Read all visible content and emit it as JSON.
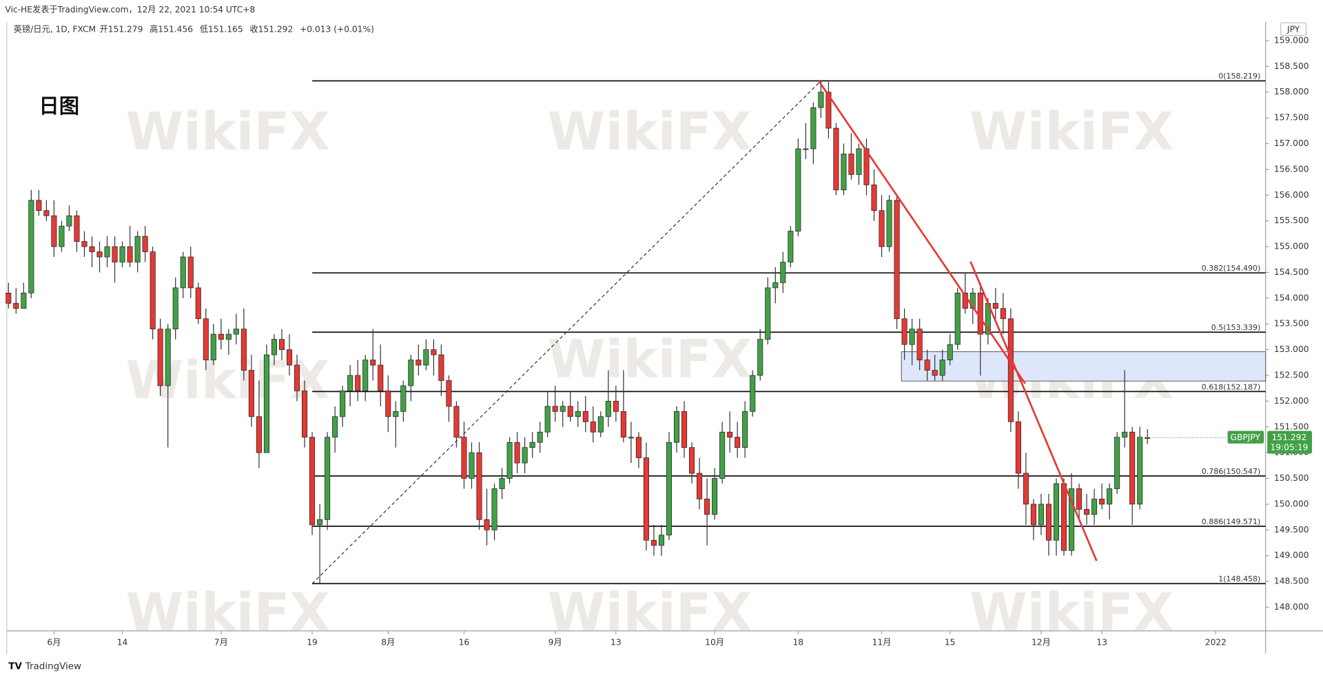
{
  "chart_data": {
    "type": "candlestick",
    "header": "Vic-HE发表于TradingView.com，12月 22, 2021 10:54 UTC+8",
    "symbol_line": "英镑/日元, 1D, FXCM",
    "ohlc_line": [
      "开151.279",
      "高151.456",
      "低151.165",
      "收151.292",
      "+0.013 (+0.01%)"
    ],
    "label": "日图",
    "currency": "JPY",
    "ticker": "GBPJPY",
    "last_price": 151.292,
    "countdown": "19:05:19",
    "footer": "TradingView",
    "watermark": "WikiFX",
    "up_color": "#43a047",
    "down_color": "#e53935",
    "xlim": [
      -0.22,
      165.56
    ],
    "ylim": [
      147.54,
      159.33
    ],
    "xticks": [
      {
        "value": 6,
        "label": "6月"
      },
      {
        "value": 15,
        "label": "14"
      },
      {
        "value": 28,
        "label": "7月"
      },
      {
        "value": 40,
        "label": "19"
      },
      {
        "value": 50,
        "label": "8月"
      },
      {
        "value": 60,
        "label": "16"
      },
      {
        "value": 72,
        "label": "9月"
      },
      {
        "value": 80,
        "label": "13"
      },
      {
        "value": 93,
        "label": "10月"
      },
      {
        "value": 104,
        "label": "18"
      },
      {
        "value": 115,
        "label": "11月"
      },
      {
        "value": 124,
        "label": "15"
      },
      {
        "value": 136,
        "label": "12月"
      },
      {
        "value": 144,
        "label": "13"
      },
      {
        "value": 159,
        "label": "2022"
      }
    ],
    "yticks": [
      {
        "value": 148,
        "label": "148.000"
      },
      {
        "value": 148.5,
        "label": "148.500"
      },
      {
        "value": 149,
        "label": "149.000"
      },
      {
        "value": 149.5,
        "label": "149.500"
      },
      {
        "value": 150,
        "label": "150.000"
      },
      {
        "value": 150.5,
        "label": "150.500"
      },
      {
        "value": 151,
        "label": "151.000"
      },
      {
        "value": 151.5,
        "label": "151.500"
      },
      {
        "value": 152,
        "label": "152.000"
      },
      {
        "value": 152.5,
        "label": "152.500"
      },
      {
        "value": 153,
        "label": "153.000"
      },
      {
        "value": 153.5,
        "label": "153.500"
      },
      {
        "value": 154,
        "label": "154.000"
      },
      {
        "value": 154.5,
        "label": "154.500"
      },
      {
        "value": 155,
        "label": "155.000"
      },
      {
        "value": 155.5,
        "label": "155.500"
      },
      {
        "value": 156,
        "label": "156.000"
      },
      {
        "value": 156.5,
        "label": "156.500"
      },
      {
        "value": 157,
        "label": "157.000"
      },
      {
        "value": 157.5,
        "label": "157.500"
      },
      {
        "value": 158,
        "label": "158.000"
      },
      {
        "value": 158.5,
        "label": "158.500"
      },
      {
        "value": 159,
        "label": "159.000"
      }
    ],
    "fib_start": 40,
    "fib_levels": [
      {
        "value": 158.219,
        "label": "0(158.219)"
      },
      {
        "value": 154.49,
        "label": "0.382(154.490)"
      },
      {
        "value": 153.339,
        "label": "0.5(153.339)"
      },
      {
        "value": 152.187,
        "label": "0.618(152.187)"
      },
      {
        "value": 150.547,
        "label": "0.786(150.547)"
      },
      {
        "value": 149.571,
        "label": "0.886(149.571)"
      },
      {
        "value": 148.458,
        "label": "1(148.458)"
      }
    ],
    "zone": {
      "x": 117.6,
      "low": 152.39,
      "high": 152.96
    },
    "trend_lines": [
      {
        "x": [
          40,
          107
        ],
        "y": [
          148.458,
          158.219
        ],
        "color": "#333333",
        "dashed": true
      },
      {
        "x": [
          106.7,
          133.9
        ],
        "y": [
          158.22,
          152.34
        ],
        "color": "#e53935",
        "dashed": false
      },
      {
        "x": [
          126.7,
          143.3
        ],
        "y": [
          154.71,
          148.9
        ],
        "color": "#e53935",
        "dashed": false
      }
    ],
    "candles": [
      [
        154.1,
        154.3,
        153.8,
        153.9
      ],
      [
        153.9,
        154.2,
        153.7,
        153.8
      ],
      [
        153.8,
        154.3,
        153.8,
        154.1
      ],
      [
        154.1,
        156.1,
        154.0,
        155.9
      ],
      [
        155.9,
        156.1,
        155.6,
        155.7
      ],
      [
        155.7,
        155.9,
        155.5,
        155.6
      ],
      [
        155.6,
        155.9,
        154.8,
        155.0
      ],
      [
        155.0,
        155.5,
        154.9,
        155.4
      ],
      [
        155.4,
        155.8,
        155.3,
        155.6
      ],
      [
        155.6,
        155.7,
        154.9,
        155.1
      ],
      [
        155.1,
        155.3,
        154.8,
        155.0
      ],
      [
        155.0,
        155.2,
        154.6,
        154.9
      ],
      [
        154.9,
        155.1,
        154.5,
        154.8
      ],
      [
        154.8,
        155.2,
        154.6,
        155.0
      ],
      [
        155.0,
        155.2,
        154.3,
        154.7
      ],
      [
        154.7,
        155.1,
        154.6,
        155.0
      ],
      [
        155.0,
        155.4,
        154.6,
        154.7
      ],
      [
        154.7,
        155.3,
        154.5,
        155.2
      ],
      [
        155.2,
        155.4,
        154.7,
        154.9
      ],
      [
        154.9,
        155.0,
        153.2,
        153.4
      ],
      [
        153.4,
        153.6,
        152.1,
        152.3
      ],
      [
        152.3,
        153.5,
        151.1,
        153.4
      ],
      [
        153.4,
        154.4,
        153.2,
        154.2
      ],
      [
        154.2,
        154.9,
        154.0,
        154.8
      ],
      [
        154.8,
        155.0,
        154.0,
        154.2
      ],
      [
        154.2,
        154.3,
        153.5,
        153.6
      ],
      [
        153.6,
        153.8,
        152.6,
        152.8
      ],
      [
        152.8,
        153.5,
        152.7,
        153.3
      ],
      [
        153.3,
        153.6,
        153.0,
        153.2
      ],
      [
        153.2,
        153.4,
        152.9,
        153.3
      ],
      [
        153.3,
        153.7,
        153.1,
        153.4
      ],
      [
        153.4,
        153.8,
        152.4,
        152.6
      ],
      [
        152.6,
        152.9,
        151.5,
        151.7
      ],
      [
        151.7,
        152.4,
        150.7,
        151.0
      ],
      [
        151.0,
        153.1,
        151.0,
        152.9
      ],
      [
        152.9,
        153.3,
        152.7,
        153.2
      ],
      [
        153.2,
        153.4,
        152.8,
        153.0
      ],
      [
        153.0,
        153.3,
        152.5,
        152.7
      ],
      [
        152.7,
        152.9,
        152.0,
        152.2
      ],
      [
        152.2,
        152.4,
        151.1,
        151.3
      ],
      [
        151.3,
        151.4,
        149.4,
        149.6
      ],
      [
        149.6,
        150.0,
        148.46,
        149.7
      ],
      [
        149.7,
        151.4,
        149.5,
        151.3
      ],
      [
        151.3,
        151.9,
        151.0,
        151.7
      ],
      [
        151.7,
        152.3,
        151.5,
        152.2
      ],
      [
        152.2,
        152.7,
        151.9,
        152.5
      ],
      [
        152.5,
        152.8,
        152.0,
        152.2
      ],
      [
        152.2,
        152.9,
        152.0,
        152.8
      ],
      [
        152.8,
        153.4,
        152.4,
        152.7
      ],
      [
        152.7,
        153.1,
        151.9,
        152.2
      ],
      [
        152.2,
        152.5,
        151.4,
        151.7
      ],
      [
        151.7,
        152.0,
        151.1,
        151.8
      ],
      [
        151.8,
        152.4,
        151.6,
        152.3
      ],
      [
        152.3,
        152.9,
        152.0,
        152.8
      ],
      [
        152.8,
        153.1,
        152.5,
        152.7
      ],
      [
        152.7,
        153.2,
        152.6,
        153.0
      ],
      [
        153.0,
        153.2,
        152.5,
        152.9
      ],
      [
        152.9,
        153.1,
        152.1,
        152.4
      ],
      [
        152.4,
        152.5,
        151.6,
        151.9
      ],
      [
        151.9,
        152.0,
        151.1,
        151.3
      ],
      [
        151.3,
        151.6,
        150.3,
        150.5
      ],
      [
        150.5,
        151.2,
        150.3,
        151.0
      ],
      [
        151.0,
        151.2,
        149.5,
        149.7
      ],
      [
        149.7,
        150.3,
        149.2,
        149.5
      ],
      [
        149.5,
        150.4,
        149.3,
        150.3
      ],
      [
        150.3,
        150.7,
        150.1,
        150.5
      ],
      [
        150.5,
        151.3,
        150.4,
        151.2
      ],
      [
        151.2,
        151.4,
        150.6,
        150.8
      ],
      [
        150.8,
        151.3,
        150.6,
        151.1
      ],
      [
        151.1,
        151.4,
        150.9,
        151.2
      ],
      [
        151.2,
        151.6,
        151.0,
        151.4
      ],
      [
        151.4,
        152.2,
        151.3,
        151.9
      ],
      [
        151.9,
        152.3,
        151.6,
        151.8
      ],
      [
        151.8,
        152.0,
        151.5,
        151.9
      ],
      [
        151.9,
        152.2,
        151.6,
        151.7
      ],
      [
        151.7,
        152.0,
        151.5,
        151.8
      ],
      [
        151.8,
        152.1,
        151.4,
        151.6
      ],
      [
        151.6,
        151.9,
        151.2,
        151.4
      ],
      [
        151.4,
        151.8,
        151.3,
        151.7
      ],
      [
        151.7,
        152.6,
        151.5,
        152.0
      ],
      [
        152.0,
        152.3,
        151.6,
        151.8
      ],
      [
        151.8,
        152.6,
        151.2,
        151.3
      ],
      [
        151.3,
        151.6,
        150.8,
        151.3
      ],
      [
        151.3,
        151.4,
        150.7,
        150.9
      ],
      [
        150.9,
        151.2,
        149.1,
        149.3
      ],
      [
        149.3,
        149.6,
        149.0,
        149.2
      ],
      [
        149.2,
        149.6,
        149.0,
        149.4
      ],
      [
        149.4,
        151.4,
        149.3,
        151.2
      ],
      [
        151.2,
        151.9,
        151.0,
        151.8
      ],
      [
        151.8,
        152.0,
        150.9,
        151.1
      ],
      [
        151.1,
        151.2,
        150.4,
        150.6
      ],
      [
        150.6,
        150.9,
        149.9,
        150.1
      ],
      [
        150.1,
        150.5,
        149.2,
        149.8
      ],
      [
        149.8,
        150.7,
        149.7,
        150.5
      ],
      [
        150.5,
        151.6,
        150.4,
        151.4
      ],
      [
        151.4,
        151.8,
        151.0,
        151.3
      ],
      [
        151.3,
        151.6,
        150.9,
        151.1
      ],
      [
        151.1,
        152.0,
        150.9,
        151.8
      ],
      [
        151.8,
        152.6,
        151.7,
        152.5
      ],
      [
        152.5,
        153.4,
        152.4,
        153.2
      ],
      [
        153.2,
        154.4,
        153.1,
        154.2
      ],
      [
        154.2,
        154.6,
        153.9,
        154.3
      ],
      [
        154.3,
        154.9,
        154.1,
        154.7
      ],
      [
        154.7,
        155.4,
        154.6,
        155.3
      ],
      [
        155.3,
        157.1,
        155.2,
        156.9
      ],
      [
        156.9,
        157.4,
        156.7,
        156.9
      ],
      [
        156.9,
        157.8,
        156.6,
        157.7
      ],
      [
        157.7,
        158.219,
        157.5,
        158.0
      ],
      [
        158.0,
        158.2,
        157.1,
        157.3
      ],
      [
        157.3,
        157.4,
        156.0,
        156.1
      ],
      [
        156.1,
        157.0,
        156.0,
        156.8
      ],
      [
        156.8,
        157.2,
        156.3,
        156.4
      ],
      [
        156.4,
        157.0,
        156.2,
        156.9
      ],
      [
        156.9,
        157.1,
        156.0,
        156.2
      ],
      [
        156.2,
        156.5,
        155.5,
        155.7
      ],
      [
        155.7,
        156.0,
        154.8,
        155.0
      ],
      [
        155.0,
        156.0,
        154.9,
        155.9
      ],
      [
        155.9,
        156.0,
        153.4,
        153.6
      ],
      [
        153.6,
        153.8,
        152.8,
        153.1
      ],
      [
        153.1,
        153.6,
        152.7,
        153.4
      ],
      [
        153.4,
        153.6,
        152.6,
        152.8
      ],
      [
        152.8,
        153.0,
        152.4,
        152.6
      ],
      [
        152.6,
        152.9,
        152.4,
        152.5
      ],
      [
        152.5,
        153.0,
        152.4,
        152.8
      ],
      [
        152.8,
        153.3,
        152.7,
        153.1
      ],
      [
        153.1,
        154.2,
        153.0,
        154.1
      ],
      [
        154.1,
        154.5,
        153.7,
        153.8
      ],
      [
        153.8,
        154.2,
        153.5,
        154.1
      ],
      [
        154.1,
        154.3,
        152.5,
        153.3
      ],
      [
        153.3,
        154.0,
        153.1,
        153.9
      ],
      [
        153.9,
        154.2,
        153.6,
        153.8
      ],
      [
        153.8,
        154.1,
        153.3,
        153.6
      ],
      [
        153.6,
        153.8,
        151.4,
        151.6
      ],
      [
        151.6,
        151.8,
        150.3,
        150.6
      ],
      [
        150.6,
        151.0,
        149.6,
        150.0
      ],
      [
        150.0,
        150.1,
        149.3,
        149.6
      ],
      [
        149.6,
        150.2,
        149.4,
        150.0
      ],
      [
        150.0,
        150.2,
        149.0,
        149.3
      ],
      [
        149.3,
        150.5,
        149.0,
        150.4
      ],
      [
        150.4,
        150.5,
        149.0,
        149.1
      ],
      [
        149.1,
        150.6,
        149.0,
        150.3
      ],
      [
        150.3,
        150.4,
        149.7,
        149.9
      ],
      [
        149.9,
        150.2,
        149.6,
        149.8
      ],
      [
        149.8,
        150.3,
        149.6,
        150.1
      ],
      [
        150.1,
        150.4,
        149.9,
        150.0
      ],
      [
        150.0,
        150.4,
        149.7,
        150.3
      ],
      [
        150.3,
        151.4,
        150.2,
        151.3
      ],
      [
        151.3,
        152.6,
        151.1,
        151.4
      ],
      [
        151.4,
        151.5,
        149.6,
        150.0
      ],
      [
        150.0,
        151.5,
        149.9,
        151.3
      ],
      [
        151.279,
        151.456,
        151.165,
        151.292
      ]
    ]
  }
}
